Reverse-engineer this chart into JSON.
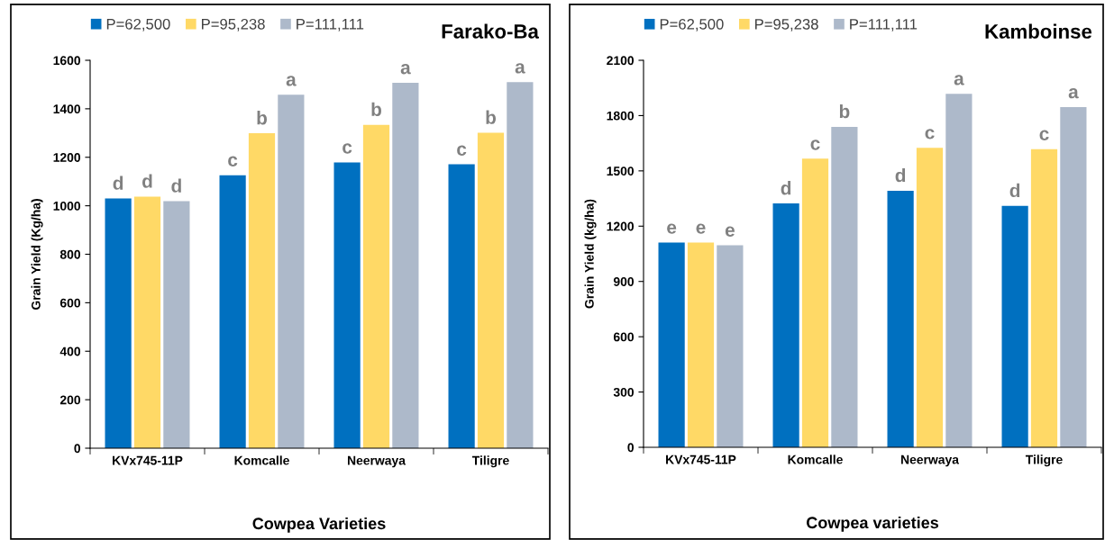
{
  "chart_data": [
    {
      "type": "bar",
      "title": "Farako-Ba",
      "xlabel": "Cowpea Varieties",
      "ylabel": "Grain Yield (Kg/ha)",
      "categories": [
        "KVx745-11P",
        "Komcalle",
        "Neerwaya",
        "Tiligre"
      ],
      "ylim": [
        0,
        1600
      ],
      "yticks": [
        0,
        200,
        400,
        600,
        800,
        1000,
        1200,
        1400,
        1600
      ],
      "grid": false,
      "legend": "top",
      "series": [
        {
          "name": "P=62,500",
          "color": "#0070c0",
          "values": [
            1030,
            1126,
            1179,
            1171
          ],
          "value_labels": [
            "d",
            "c",
            "c",
            "c"
          ]
        },
        {
          "name": "P=95,238",
          "color": "#ffd966",
          "values": [
            1038,
            1299,
            1334,
            1301
          ],
          "value_labels": [
            "d",
            "b",
            "b",
            "b"
          ]
        },
        {
          "name": "P=111,111",
          "color": "#adb9ca",
          "values": [
            1019,
            1458,
            1507,
            1510
          ],
          "value_labels": [
            "d",
            "a",
            "a",
            "a"
          ]
        }
      ]
    },
    {
      "type": "bar",
      "title": "Kamboinse",
      "xlabel": "Cowpea varieties",
      "ylabel": "Grain Yield (kg/ha)",
      "categories": [
        "KVx745-11P",
        "Komcalle",
        "Neerwaya",
        "Tiligre"
      ],
      "ylim": [
        0,
        2100
      ],
      "yticks": [
        0,
        300,
        600,
        900,
        1200,
        1500,
        1800,
        2100
      ],
      "grid": false,
      "legend": "top",
      "series": [
        {
          "name": "P=62,500",
          "color": "#0070c0",
          "values": [
            1111,
            1323,
            1392,
            1310
          ],
          "value_labels": [
            "e",
            "d",
            "d",
            "d"
          ]
        },
        {
          "name": "P=95,238",
          "color": "#ffd966",
          "values": [
            1111,
            1566,
            1625,
            1618
          ],
          "value_labels": [
            "e",
            "c",
            "c",
            "c"
          ]
        },
        {
          "name": "P=111,111",
          "color": "#adb9ca",
          "values": [
            1096,
            1739,
            1918,
            1846
          ],
          "value_labels": [
            "e",
            "b",
            "a",
            "a"
          ]
        }
      ]
    }
  ]
}
